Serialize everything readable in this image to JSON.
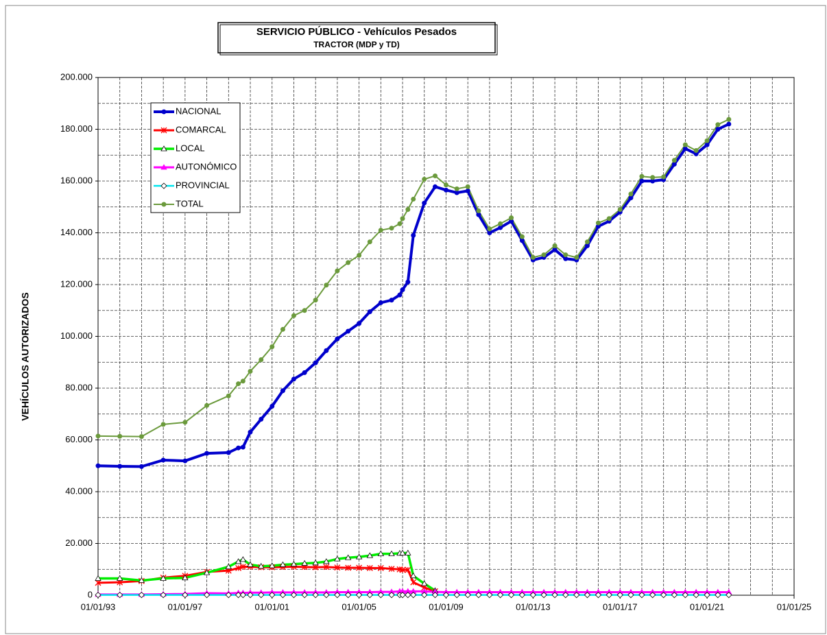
{
  "chart_data": {
    "type": "line",
    "title": "SERVICIO PÚBLICO - Vehículos Pesados",
    "subtitle": "TRACTOR (MDP y TD)",
    "y_label": "VEHÍCULOS AUTORIZADOS",
    "x": [
      "1993-01-01",
      "1994-01-01",
      "1995-01-01",
      "1996-01-01",
      "1997-01-01",
      "1998-01-01",
      "1999-01-01",
      "1999-06-15",
      "1999-09-01",
      "2000-01-01",
      "2000-07-01",
      "2001-01-01",
      "2001-07-01",
      "2002-01-01",
      "2002-07-01",
      "2003-01-01",
      "2003-07-01",
      "2004-01-01",
      "2004-07-01",
      "2005-01-01",
      "2005-07-01",
      "2006-01-01",
      "2006-07-01",
      "2006-11-15",
      "2007-01-01",
      "2007-04-01",
      "2007-07-01",
      "2008-01-01",
      "2008-07-01",
      "2009-01-01",
      "2009-07-01",
      "2010-01-01",
      "2010-07-01",
      "2011-01-01",
      "2011-07-01",
      "2012-01-01",
      "2012-07-01",
      "2013-01-01",
      "2013-07-01",
      "2014-01-01",
      "2014-07-01",
      "2015-01-01",
      "2015-07-01",
      "2016-01-01",
      "2016-07-01",
      "2017-01-01",
      "2017-07-01",
      "2018-01-01",
      "2018-07-01",
      "2019-01-01",
      "2019-07-01",
      "2020-01-01",
      "2020-07-01",
      "2021-01-01",
      "2021-07-01",
      "2022-01-01"
    ],
    "series": [
      {
        "name": "NACIONAL",
        "color": "#0000cc",
        "marker": "circle",
        "values": [
          50000,
          49800,
          49700,
          52200,
          51900,
          54800,
          55100,
          56900,
          57200,
          63000,
          68000,
          73000,
          79000,
          83500,
          86000,
          89800,
          94500,
          99000,
          102000,
          105000,
          109500,
          113000,
          114000,
          116000,
          118000,
          121000,
          139000,
          151500,
          157800,
          156500,
          155500,
          156200,
          147000,
          140000,
          142000,
          144500,
          137000,
          129500,
          130500,
          133500,
          130000,
          129500,
          135000,
          142500,
          144500,
          148000,
          153500,
          160000,
          160000,
          160500,
          166500,
          172500,
          170500,
          174000,
          180000,
          182000
        ]
      },
      {
        "name": "COMARCAL",
        "color": "#ff0000",
        "marker": "asterisk",
        "values": [
          4800,
          5000,
          5500,
          6800,
          7500,
          9000,
          9500,
          10500,
          11000,
          11000,
          10800,
          10800,
          10900,
          11000,
          10900,
          10800,
          10900,
          10700,
          10600,
          10600,
          10500,
          10500,
          10200,
          10000,
          9800,
          9800,
          5000,
          3000,
          1500,
          null,
          null,
          null,
          null,
          null,
          null,
          null,
          null,
          null,
          null,
          null,
          null,
          null,
          null,
          null,
          null,
          null,
          null,
          null,
          null,
          null,
          null,
          null,
          null,
          null,
          null,
          null
        ]
      },
      {
        "name": "LOCAL",
        "color": "#00ee00",
        "marker": "triangle-open",
        "values": [
          6500,
          6500,
          5700,
          6500,
          6700,
          8700,
          11000,
          13000,
          13800,
          11800,
          11200,
          11400,
          11800,
          12000,
          12300,
          12500,
          13000,
          14000,
          14500,
          14800,
          15300,
          16000,
          16000,
          16200,
          16300,
          16300,
          7500,
          4500,
          1800,
          null,
          null,
          null,
          null,
          null,
          null,
          null,
          null,
          null,
          null,
          null,
          null,
          null,
          null,
          null,
          null,
          null,
          null,
          null,
          null,
          null,
          null,
          null,
          null,
          null,
          null,
          null
        ]
      },
      {
        "name": "AUTONÓMICO",
        "color": "#ff00ff",
        "marker": "triangle",
        "values": [
          300,
          300,
          300,
          400,
          500,
          800,
          700,
          900,
          900,
          1000,
          1000,
          1100,
          1100,
          1100,
          1100,
          1100,
          1100,
          1200,
          1200,
          1200,
          1200,
          1300,
          1300,
          1500,
          1500,
          1500,
          1500,
          1500,
          1300,
          1200,
          1200,
          1200,
          1200,
          1200,
          1200,
          1200,
          1200,
          1200,
          1200,
          1200,
          1200,
          1200,
          1200,
          1200,
          1200,
          1200,
          1200,
          1200,
          1200,
          1200,
          1200,
          1200,
          1200,
          1200,
          1200,
          1200
        ]
      },
      {
        "name": "PROVINCIAL",
        "color": "#00e5ee",
        "marker": "diamond-open",
        "values": [
          100,
          100,
          100,
          100,
          100,
          100,
          100,
          100,
          100,
          100,
          100,
          100,
          100,
          100,
          100,
          100,
          100,
          100,
          100,
          100,
          100,
          100,
          100,
          100,
          100,
          100,
          100,
          100,
          100,
          100,
          100,
          100,
          100,
          100,
          100,
          100,
          100,
          100,
          100,
          100,
          100,
          100,
          100,
          100,
          100,
          100,
          100,
          100,
          100,
          100,
          100,
          100,
          100,
          100,
          100,
          100
        ]
      },
      {
        "name": "TOTAL",
        "color": "#6b9a3c",
        "marker": "circle",
        "values": [
          61500,
          61400,
          61300,
          66000,
          66800,
          73300,
          77000,
          81700,
          82700,
          86500,
          91000,
          96000,
          102700,
          108000,
          110000,
          114000,
          119800,
          125300,
          128500,
          131300,
          136500,
          141000,
          141800,
          143500,
          145500,
          149000,
          153000,
          160700,
          162000,
          158500,
          157000,
          157800,
          148500,
          141500,
          143500,
          145800,
          138500,
          130500,
          131500,
          135000,
          131500,
          130500,
          136500,
          143800,
          145500,
          149000,
          155000,
          161800,
          161400,
          161600,
          168000,
          174000,
          171800,
          175600,
          181800,
          183800
        ]
      }
    ],
    "xlim": [
      "1993-01-01",
      "2025-01-01"
    ],
    "xticks": [
      {
        "value": "1993-01-01",
        "label": "01/01/93"
      },
      {
        "value": "1997-01-01",
        "label": "01/01/97"
      },
      {
        "value": "2001-01-01",
        "label": "01/01/01"
      },
      {
        "value": "2005-01-01",
        "label": "01/01/05"
      },
      {
        "value": "2009-01-01",
        "label": "01/01/09"
      },
      {
        "value": "2013-01-01",
        "label": "01/01/13"
      },
      {
        "value": "2017-01-01",
        "label": "01/01/17"
      },
      {
        "value": "2021-01-01",
        "label": "01/01/21"
      },
      {
        "value": "2025-01-01",
        "label": "01/01/25"
      }
    ],
    "ylim": [
      0,
      200000
    ],
    "yticks": [
      0,
      {
        "value": 20000,
        "label": "20.000"
      },
      {
        "value": 40000,
        "label": "40.000"
      },
      {
        "value": 60000,
        "label": "60.000"
      },
      {
        "value": 80000,
        "label": "80.000"
      },
      {
        "value": 100000,
        "label": "100.000"
      },
      {
        "value": 120000,
        "label": "120.000"
      },
      {
        "value": 140000,
        "label": "140.000"
      },
      {
        "value": 160000,
        "label": "160.000"
      },
      {
        "value": 180000,
        "label": "180.000"
      },
      {
        "value": 200000,
        "label": "200.000"
      }
    ],
    "grid": true,
    "legend": "upper left"
  }
}
